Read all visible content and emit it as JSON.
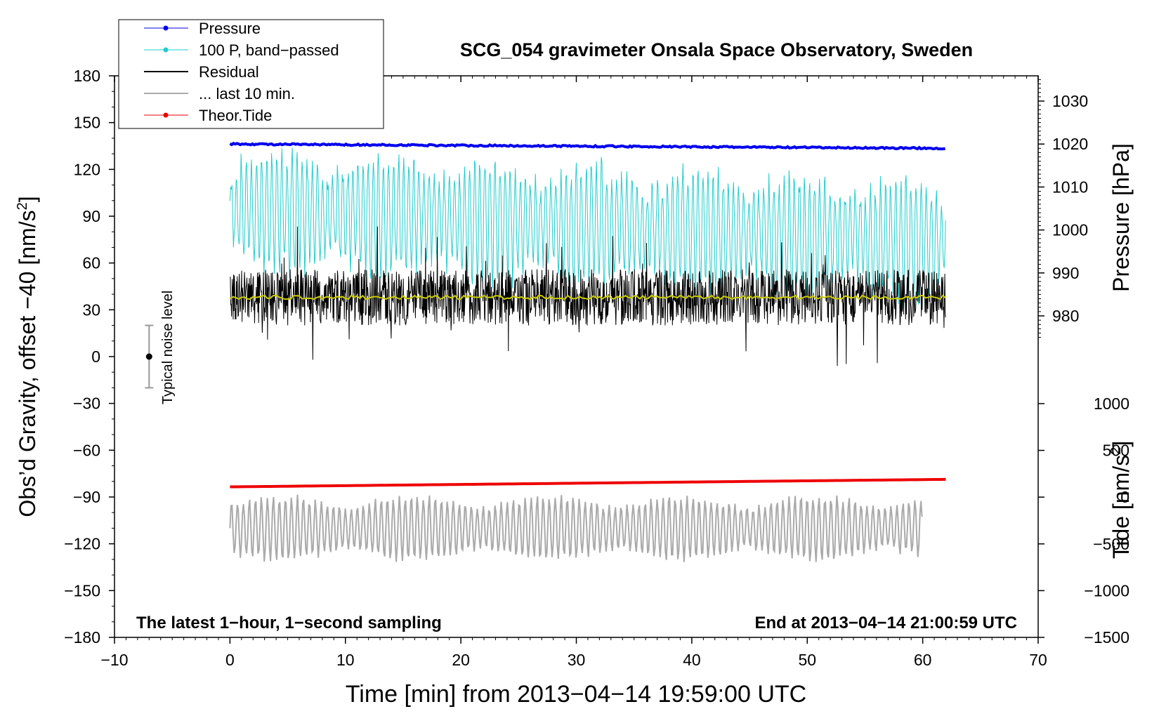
{
  "chart_data": {
    "type": "line",
    "title": "SCG_054 gravimeter Onsala Space Observatory, Sweden",
    "xlabel": "Time [min] from 2013−04−14 19:59:00 UTC",
    "ylabel_left": "Obs’d Gravity, offset −40 [nm/s²]",
    "ylabel_left_main": "Obs’d Gravity, offset −40 [nm/s",
    "ylabel_left_sup": "2",
    "ylabel_left_end": "]",
    "ylabel_right_pressure": "Pressure [hPa]",
    "ylabel_right_tide": "Tide [nm/s²]",
    "ylabel_right_tide_main": "Tide [nm/s",
    "ylabel_right_tide_sup": "2",
    "ylabel_right_tide_end": "]",
    "xlim": [
      -10,
      70
    ],
    "ylim": [
      -180,
      180
    ],
    "pressure_axis_range": [
      970,
      1035
    ],
    "tide_axis_range": [
      -1500,
      1000
    ],
    "x_ticks": [
      "−10",
      "0",
      "10",
      "20",
      "30",
      "40",
      "50",
      "60",
      "70"
    ],
    "y_ticks": [
      "180",
      "150",
      "120",
      "90",
      "60",
      "30",
      "0",
      "−30",
      "−60",
      "−90",
      "−120",
      "−150",
      "−180"
    ],
    "pressure_ticks": [
      "1030",
      "1020",
      "1010",
      "1000",
      "990",
      "980"
    ],
    "tide_ticks": [
      "1000",
      "500",
      "0",
      "−500",
      "−1000",
      "−1500"
    ],
    "legend": [
      {
        "label": "Pressure",
        "color": "#0000ee",
        "marker": true
      },
      {
        "label": "100 P, band−passed",
        "color": "#22cccc",
        "marker": true
      },
      {
        "label": "Residual",
        "color": "#000000",
        "marker": false
      },
      {
        "label": "... last 10 min.",
        "color": "#aaaaaa",
        "marker": false
      },
      {
        "label": "Theor.Tide",
        "color": "#ee0000",
        "marker": true
      }
    ],
    "series": [
      {
        "name": "Pressure",
        "axis": "pressure",
        "color": "#0000ee",
        "x_range": [
          0,
          62
        ],
        "y_start": 1020.0,
        "y_end": 1019.0
      },
      {
        "name": "100 P, band-passed",
        "axis": "left",
        "color": "#22cccc",
        "x_range": [
          0,
          62
        ],
        "center": 95,
        "amplitude": 30
      },
      {
        "name": "Residual",
        "axis": "left",
        "color": "#000000",
        "x_range": [
          0,
          62
        ],
        "center": 38,
        "amplitude": 18
      },
      {
        "name": "Residual mean",
        "axis": "left",
        "color": "#cccc00",
        "x_range": [
          0,
          62
        ],
        "value": 38
      },
      {
        "name": "... last 10 min.",
        "axis": "left",
        "color": "#aaaaaa",
        "x_range": [
          0,
          60
        ],
        "center": -110,
        "amplitude": 18
      },
      {
        "name": "Theor.Tide",
        "axis": "tide",
        "color": "#ee0000",
        "x_range": [
          0,
          62
        ],
        "y_start": 110,
        "y_end": 190
      }
    ],
    "noise_bar": {
      "x": -7,
      "center": 0,
      "low": -20,
      "high": 20,
      "label": "Typical noise level"
    },
    "annotations": {
      "bottom_left": "The latest 1−hour, 1−second sampling",
      "bottom_right": "End at 2013−04−14 21:00:59 UTC"
    }
  }
}
